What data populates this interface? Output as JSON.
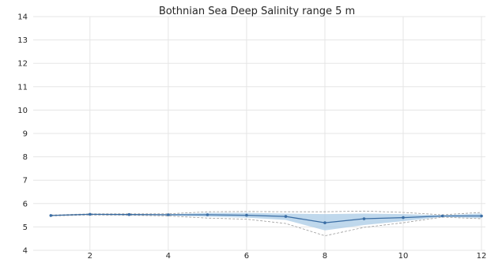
{
  "chart_data": {
    "type": "line",
    "title": "Bothnian Sea Deep Salinity range 5 m",
    "xlabel": "",
    "ylabel": "",
    "xlim": [
      0.55,
      12.1
    ],
    "ylim": [
      4,
      14
    ],
    "x_ticks": [
      2,
      4,
      6,
      8,
      10,
      12
    ],
    "y_ticks": [
      4,
      5,
      6,
      7,
      8,
      9,
      10,
      11,
      12,
      13,
      14
    ],
    "grid": true,
    "colors": {
      "line": "#3b6ea5",
      "band": "#a9cbe6",
      "dashed": "#9a9a9a"
    },
    "series": [
      {
        "x": [
          1,
          2,
          3,
          4,
          5,
          6,
          7,
          8,
          9,
          10,
          11,
          12
        ],
        "mean": [
          5.49,
          5.54,
          5.53,
          5.52,
          5.52,
          5.5,
          5.45,
          5.18,
          5.35,
          5.4,
          5.47,
          5.47
        ],
        "band_upper": [
          5.5,
          5.55,
          5.55,
          5.54,
          5.6,
          5.6,
          5.57,
          5.55,
          5.57,
          5.55,
          5.5,
          5.58
        ],
        "band_lower": [
          5.48,
          5.52,
          5.51,
          5.49,
          5.44,
          5.4,
          5.3,
          4.85,
          5.08,
          5.25,
          5.43,
          5.38
        ],
        "dashed_upper": [
          5.51,
          5.56,
          5.56,
          5.56,
          5.65,
          5.66,
          5.65,
          5.65,
          5.68,
          5.62,
          5.52,
          5.62
        ],
        "dashed_lower": [
          5.47,
          5.51,
          5.5,
          5.47,
          5.38,
          5.33,
          5.15,
          4.62,
          4.98,
          5.18,
          5.42,
          5.35
        ]
      }
    ]
  }
}
